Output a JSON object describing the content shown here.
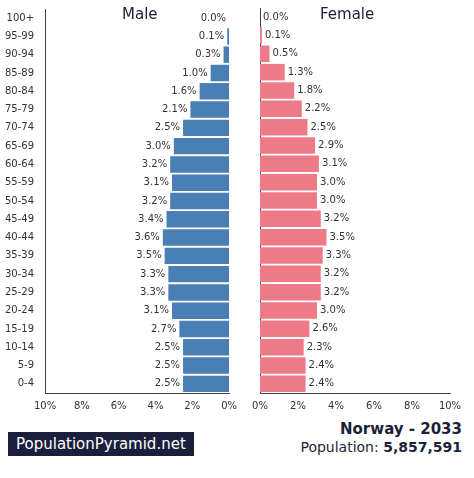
{
  "chart_data": {
    "type": "bar",
    "title": "Norway - 2033",
    "source": "PopulationPyramid.net",
    "population_label": "Population:",
    "population": "5,857,591",
    "orientation": "horizontal",
    "data_labels": true,
    "grid": false,
    "categories": [
      "100+",
      "95-99",
      "90-94",
      "85-89",
      "80-84",
      "75-79",
      "70-74",
      "65-69",
      "60-64",
      "55-59",
      "50-54",
      "45-49",
      "40-44",
      "35-39",
      "30-34",
      "25-29",
      "20-24",
      "15-19",
      "10-14",
      "5-9",
      "0-4"
    ],
    "series": [
      {
        "name": "Male",
        "color": "#4a7fb5",
        "values": [
          0.0,
          0.1,
          0.3,
          1.0,
          1.6,
          2.1,
          2.5,
          3.0,
          3.2,
          3.1,
          3.2,
          3.4,
          3.6,
          3.5,
          3.3,
          3.3,
          3.1,
          2.7,
          2.5,
          2.5,
          2.5
        ],
        "value_labels": [
          "0.0%",
          "0.1%",
          "0.3%",
          "1.0%",
          "1.6%",
          "2.1%",
          "2.5%",
          "3.0%",
          "3.2%",
          "3.1%",
          "3.2%",
          "3.4%",
          "3.6%",
          "3.5%",
          "3.3%",
          "3.3%",
          "3.1%",
          "2.7%",
          "2.5%",
          "2.5%",
          "2.5%"
        ]
      },
      {
        "name": "Female",
        "color": "#ee7a87",
        "values": [
          0.0,
          0.1,
          0.5,
          1.3,
          1.8,
          2.2,
          2.5,
          2.9,
          3.1,
          3.0,
          3.0,
          3.2,
          3.5,
          3.3,
          3.2,
          3.2,
          3.0,
          2.6,
          2.3,
          2.4,
          2.4
        ],
        "value_labels": [
          "0.0%",
          "0.1%",
          "0.5%",
          "1.3%",
          "1.8%",
          "2.2%",
          "2.5%",
          "2.9%",
          "3.1%",
          "3.0%",
          "3.0%",
          "3.2%",
          "3.5%",
          "3.3%",
          "3.2%",
          "3.2%",
          "3.0%",
          "2.6%",
          "2.3%",
          "2.4%",
          "2.4%"
        ]
      }
    ],
    "xlim": [
      0,
      10
    ],
    "xticks": [
      {
        "value": 0,
        "label": "0%"
      },
      {
        "value": 2,
        "label": "2%"
      },
      {
        "value": 4,
        "label": "4%"
      },
      {
        "value": 6,
        "label": "6%"
      },
      {
        "value": 8,
        "label": "8%"
      },
      {
        "value": 10,
        "label": "10%"
      }
    ]
  }
}
